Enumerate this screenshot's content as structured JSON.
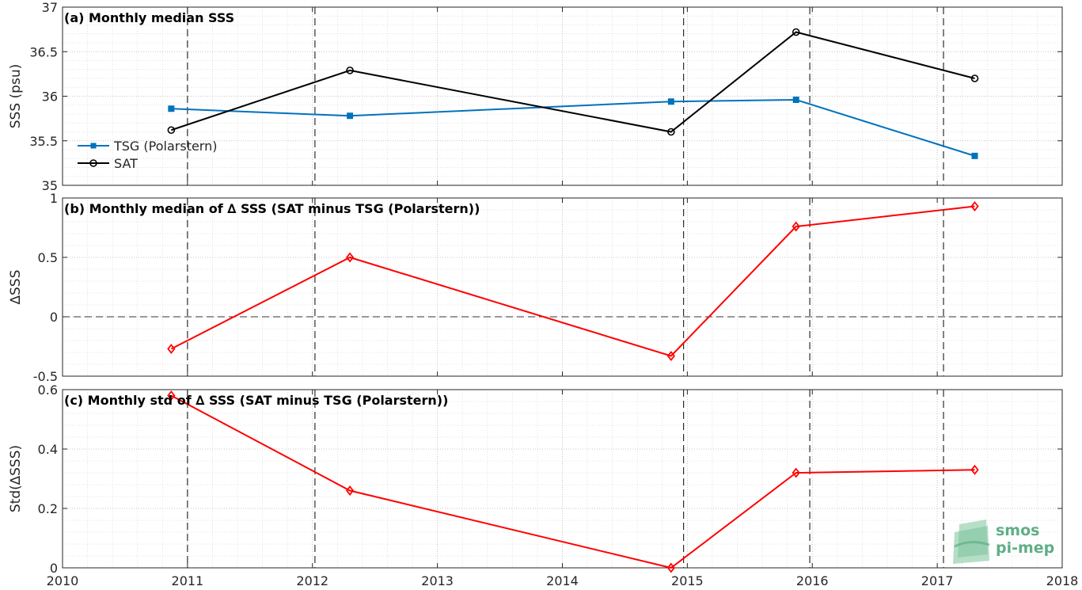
{
  "chart_data": [
    {
      "type": "line",
      "title": "(a) Monthly median SSS",
      "ylabel": "SSS (psu)",
      "xlim": [
        2010,
        2018
      ],
      "ylim": [
        35,
        37
      ],
      "yticks": [
        "35",
        "35.5",
        "36",
        "36.5",
        "37"
      ],
      "legend_position": "lower-left",
      "series": [
        {
          "name": "TSG (Polarstern)",
          "color": "#0072bd",
          "marker": "square",
          "x": [
            2010.87,
            2012.3,
            2014.87,
            2015.87,
            2017.3
          ],
          "y": [
            35.86,
            35.78,
            35.94,
            35.96,
            35.33
          ]
        },
        {
          "name": "SAT",
          "color": "#000000",
          "marker": "circle",
          "x": [
            2010.87,
            2012.3,
            2014.87,
            2015.87,
            2017.3
          ],
          "y": [
            35.62,
            36.29,
            35.6,
            36.72,
            36.2
          ]
        }
      ]
    },
    {
      "type": "line",
      "title": "(b) Monthly median of ∆ SSS (SAT minus TSG (Polarstern))",
      "ylabel": "∆SSS",
      "xlim": [
        2010,
        2018
      ],
      "ylim": [
        -0.5,
        1
      ],
      "yticks": [
        "-0.5",
        "0",
        "0.5",
        "1"
      ],
      "zero_line": true,
      "series": [
        {
          "color": "#ff0000",
          "marker": "diamond",
          "x": [
            2010.87,
            2012.3,
            2014.87,
            2015.87,
            2017.3
          ],
          "y": [
            -0.27,
            0.5,
            -0.33,
            0.76,
            0.93
          ]
        }
      ]
    },
    {
      "type": "line",
      "title": "(c) Monthly std of ∆ SSS (SAT minus TSG (Polarstern))",
      "ylabel": "Std(∆SSS)",
      "xlim": [
        2010,
        2018
      ],
      "ylim": [
        0,
        0.6
      ],
      "yticks": [
        "0",
        "0.2",
        "0.4",
        "0.6"
      ],
      "xticks": [
        "2010",
        "2011",
        "2012",
        "2013",
        "2014",
        "2015",
        "2016",
        "2017",
        "2018"
      ],
      "series": [
        {
          "color": "#ff0000",
          "marker": "diamond",
          "x": [
            2010.87,
            2012.3,
            2014.87,
            2015.87,
            2017.3
          ],
          "y": [
            0.58,
            0.26,
            0.0,
            0.32,
            0.33
          ]
        }
      ]
    }
  ],
  "grid": {
    "major_dashed_x": [
      2011,
      2012.02,
      2014.97,
      2015.98,
      2017.05
    ],
    "minor_dotted": true
  },
  "logo": {
    "line1": "smos",
    "line2": "pi-mep"
  }
}
